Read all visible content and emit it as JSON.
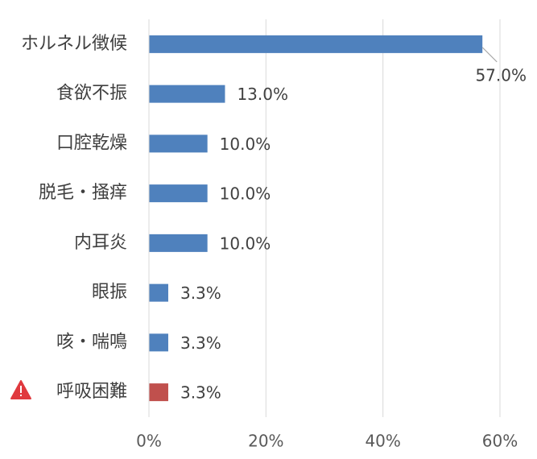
{
  "chart_data": {
    "type": "bar",
    "orientation": "horizontal",
    "categories": [
      "ホルネル徴候",
      "食欲不振",
      "口腔乾燥",
      "脱毛・掻痒",
      "内耳炎",
      "眼振",
      "咳・喘鳴",
      "呼吸困難"
    ],
    "values": [
      57,
      13,
      10,
      10,
      10,
      3.3,
      3.3,
      3.3
    ],
    "value_labels": [
      "57.0%",
      "13.0%",
      "10.0%",
      "10.0%",
      "10.0%",
      "3.3%",
      "3.3%",
      "3.3%"
    ],
    "colors": [
      "#4f81bd",
      "#4f81bd",
      "#4f81bd",
      "#4f81bd",
      "#4f81bd",
      "#4f81bd",
      "#4f81bd",
      "#c0504d"
    ],
    "xlim": [
      0,
      60
    ],
    "xticks": [
      {
        "value": 0,
        "label": "0%"
      },
      {
        "value": 20,
        "label": "20%"
      },
      {
        "value": 40,
        "label": "40%"
      },
      {
        "value": 60,
        "label": "60%"
      }
    ],
    "grid": true
  }
}
